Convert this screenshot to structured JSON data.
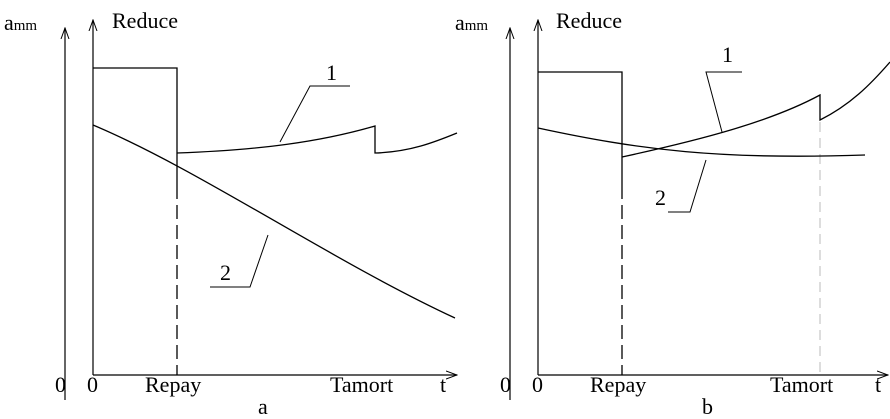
{
  "panels": [
    {
      "axis_label": "a",
      "axis_label_sub": "mm",
      "y_label": "Reduce",
      "outer_origin": "0",
      "origin": "0",
      "repay": "Repay",
      "tamort": "Tamort",
      "t": "t",
      "caption": "a",
      "curve_1": "1",
      "curve_2": "2"
    },
    {
      "axis_label": "a",
      "axis_label_sub": "mm",
      "y_label": "Reduce",
      "outer_origin": "0",
      "origin": "0",
      "repay": "Repay",
      "tamort": "Tamort",
      "t": "t",
      "caption": "b",
      "curve_1": "1",
      "curve_2": "2"
    }
  ]
}
